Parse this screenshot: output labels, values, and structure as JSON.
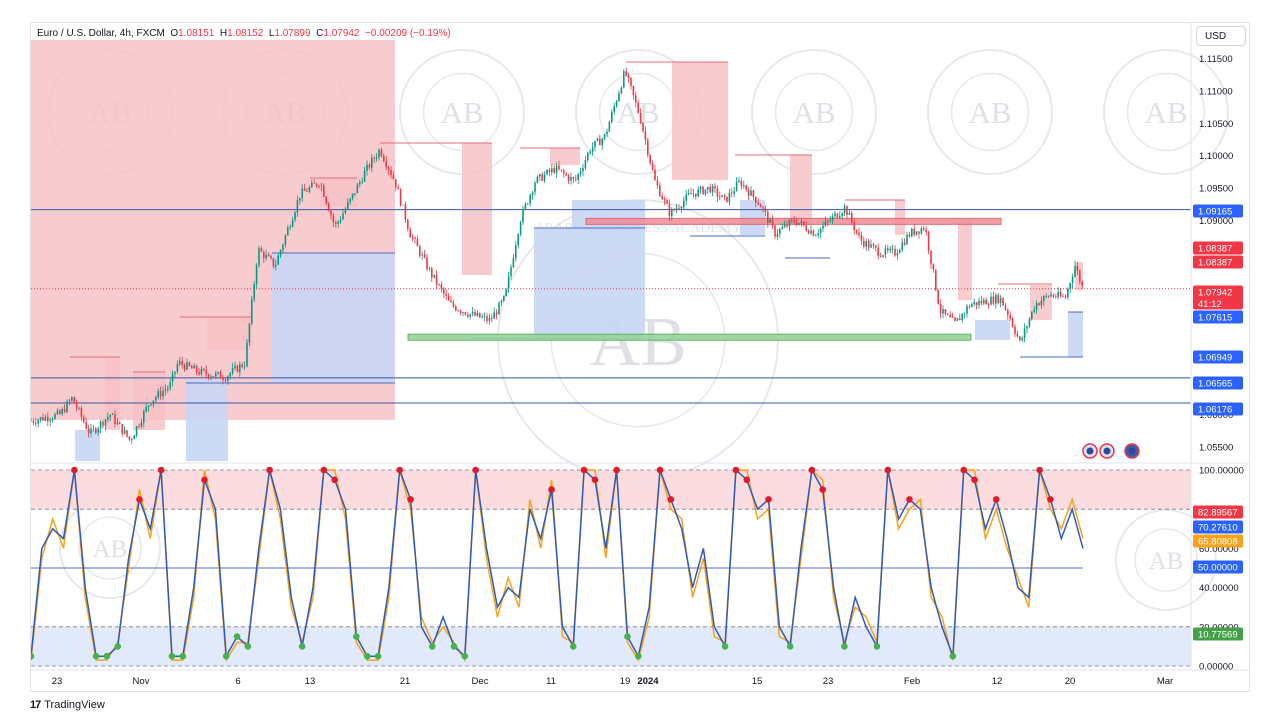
{
  "header": {
    "symbol": "Euro / U.S. Dollar, 4h, FXCM",
    "open_label": "O",
    "open": "1.08151",
    "high_label": "H",
    "high": "1.08152",
    "low_label": "L",
    "low": "1.07899",
    "close_label": "C",
    "close": "1.07942",
    "change": "−0.00209 (−0.19%)"
  },
  "currency": "USD",
  "brand": "TradingView",
  "watermark": {
    "initials": "AB",
    "ring_text": "ARABIAN BUSINESS ACADEMY"
  },
  "colors": {
    "up": "#089981",
    "down": "#f23645",
    "resistance": "#f7c2c6",
    "support": "#c8d6f5",
    "level_line": "#2962ff",
    "k_line": "#2f5bb7",
    "d_line": "#f7a21b"
  },
  "chart_data": [
    {
      "type": "candlestick",
      "symbol": "Euro / U.S. Dollar",
      "timeframe": "4h",
      "x_tick_labels": [
        "23",
        "Nov",
        "6",
        "13",
        "21",
        "Dec",
        "11",
        "19",
        "2024",
        "15",
        "23",
        "Feb",
        "12",
        "20",
        "Mar"
      ],
      "y_tick_labels": [
        "1.11500",
        "1.11000",
        "1.10500",
        "1.10000",
        "1.09500",
        "1.09000",
        "1.06000",
        "1.05500"
      ],
      "ylim": [
        1.0528,
        1.1205
      ],
      "horizontal_levels": [
        "1.09165",
        "1.06565",
        "1.06176"
      ],
      "price_badges": [
        {
          "value": "1.09165",
          "kind": "level"
        },
        {
          "value": "1.08387",
          "kind": "high"
        },
        {
          "value": "1.08387",
          "kind": "high"
        },
        {
          "value": "1.07942",
          "kind": "last",
          "countdown": "41:12"
        },
        {
          "value": "1.07615",
          "kind": "level"
        },
        {
          "value": "1.06949",
          "kind": "level"
        },
        {
          "value": "1.06565",
          "kind": "level"
        },
        {
          "value": "1.06176",
          "kind": "level"
        }
      ],
      "resistance_zone": [
        1.0895,
        1.0903
      ],
      "support_zone": [
        1.0716,
        1.0724
      ],
      "last_price": 1.07942
    },
    {
      "type": "line",
      "indicator": "stochastic",
      "y_tick_labels": [
        "100.00000",
        "60.00000",
        "40.00000",
        "20.00000",
        "0.00000"
      ],
      "ylim": [
        0,
        100
      ],
      "levels": [
        100,
        80,
        50,
        20,
        0
      ],
      "value_badges": [
        {
          "value": "82.89567",
          "kind": "red"
        },
        {
          "value": "70.27610",
          "kind": "blue"
        },
        {
          "value": "65.80808",
          "kind": "orange"
        },
        {
          "value": "50.00000",
          "kind": "blue"
        },
        {
          "value": "10.77569",
          "kind": "green"
        }
      ],
      "series": [
        {
          "values": [
            5,
            60,
            70,
            65,
            100,
            40,
            5,
            5,
            10,
            55,
            85,
            70,
            100,
            5,
            5,
            40,
            95,
            80,
            5,
            15,
            10,
            60,
            100,
            80,
            35,
            10,
            40,
            100,
            95,
            80,
            15,
            5,
            5,
            40,
            100,
            85,
            20,
            10,
            25,
            10,
            5,
            100,
            60,
            30,
            40,
            35,
            80,
            65,
            90,
            20,
            10,
            100,
            95,
            60,
            100,
            15,
            5,
            30,
            100,
            85,
            70,
            40,
            60,
            20,
            10,
            100,
            95,
            80,
            85,
            20,
            10,
            60,
            100,
            90,
            40,
            10,
            35,
            20,
            10,
            100,
            75,
            85,
            80,
            40,
            20,
            5,
            100,
            95,
            70,
            85,
            65,
            40,
            35,
            100,
            85,
            65,
            80,
            60
          ]
        },
        {
          "values": [
            3,
            55,
            75,
            60,
            100,
            35,
            3,
            3,
            12,
            50,
            90,
            65,
            100,
            3,
            3,
            35,
            100,
            75,
            3,
            12,
            12,
            55,
            100,
            75,
            30,
            12,
            35,
            100,
            100,
            75,
            12,
            3,
            3,
            35,
            100,
            80,
            25,
            12,
            20,
            12,
            3,
            100,
            55,
            25,
            45,
            30,
            85,
            60,
            95,
            15,
            12,
            100,
            100,
            55,
            100,
            12,
            3,
            25,
            100,
            80,
            75,
            35,
            55,
            15,
            12,
            100,
            100,
            75,
            80,
            15,
            12,
            55,
            100,
            95,
            35,
            12,
            30,
            25,
            12,
            100,
            70,
            80,
            85,
            35,
            25,
            3,
            100,
            100,
            65,
            80,
            60,
            45,
            30,
            100,
            80,
            70,
            85,
            65
          ]
        }
      ]
    }
  ]
}
